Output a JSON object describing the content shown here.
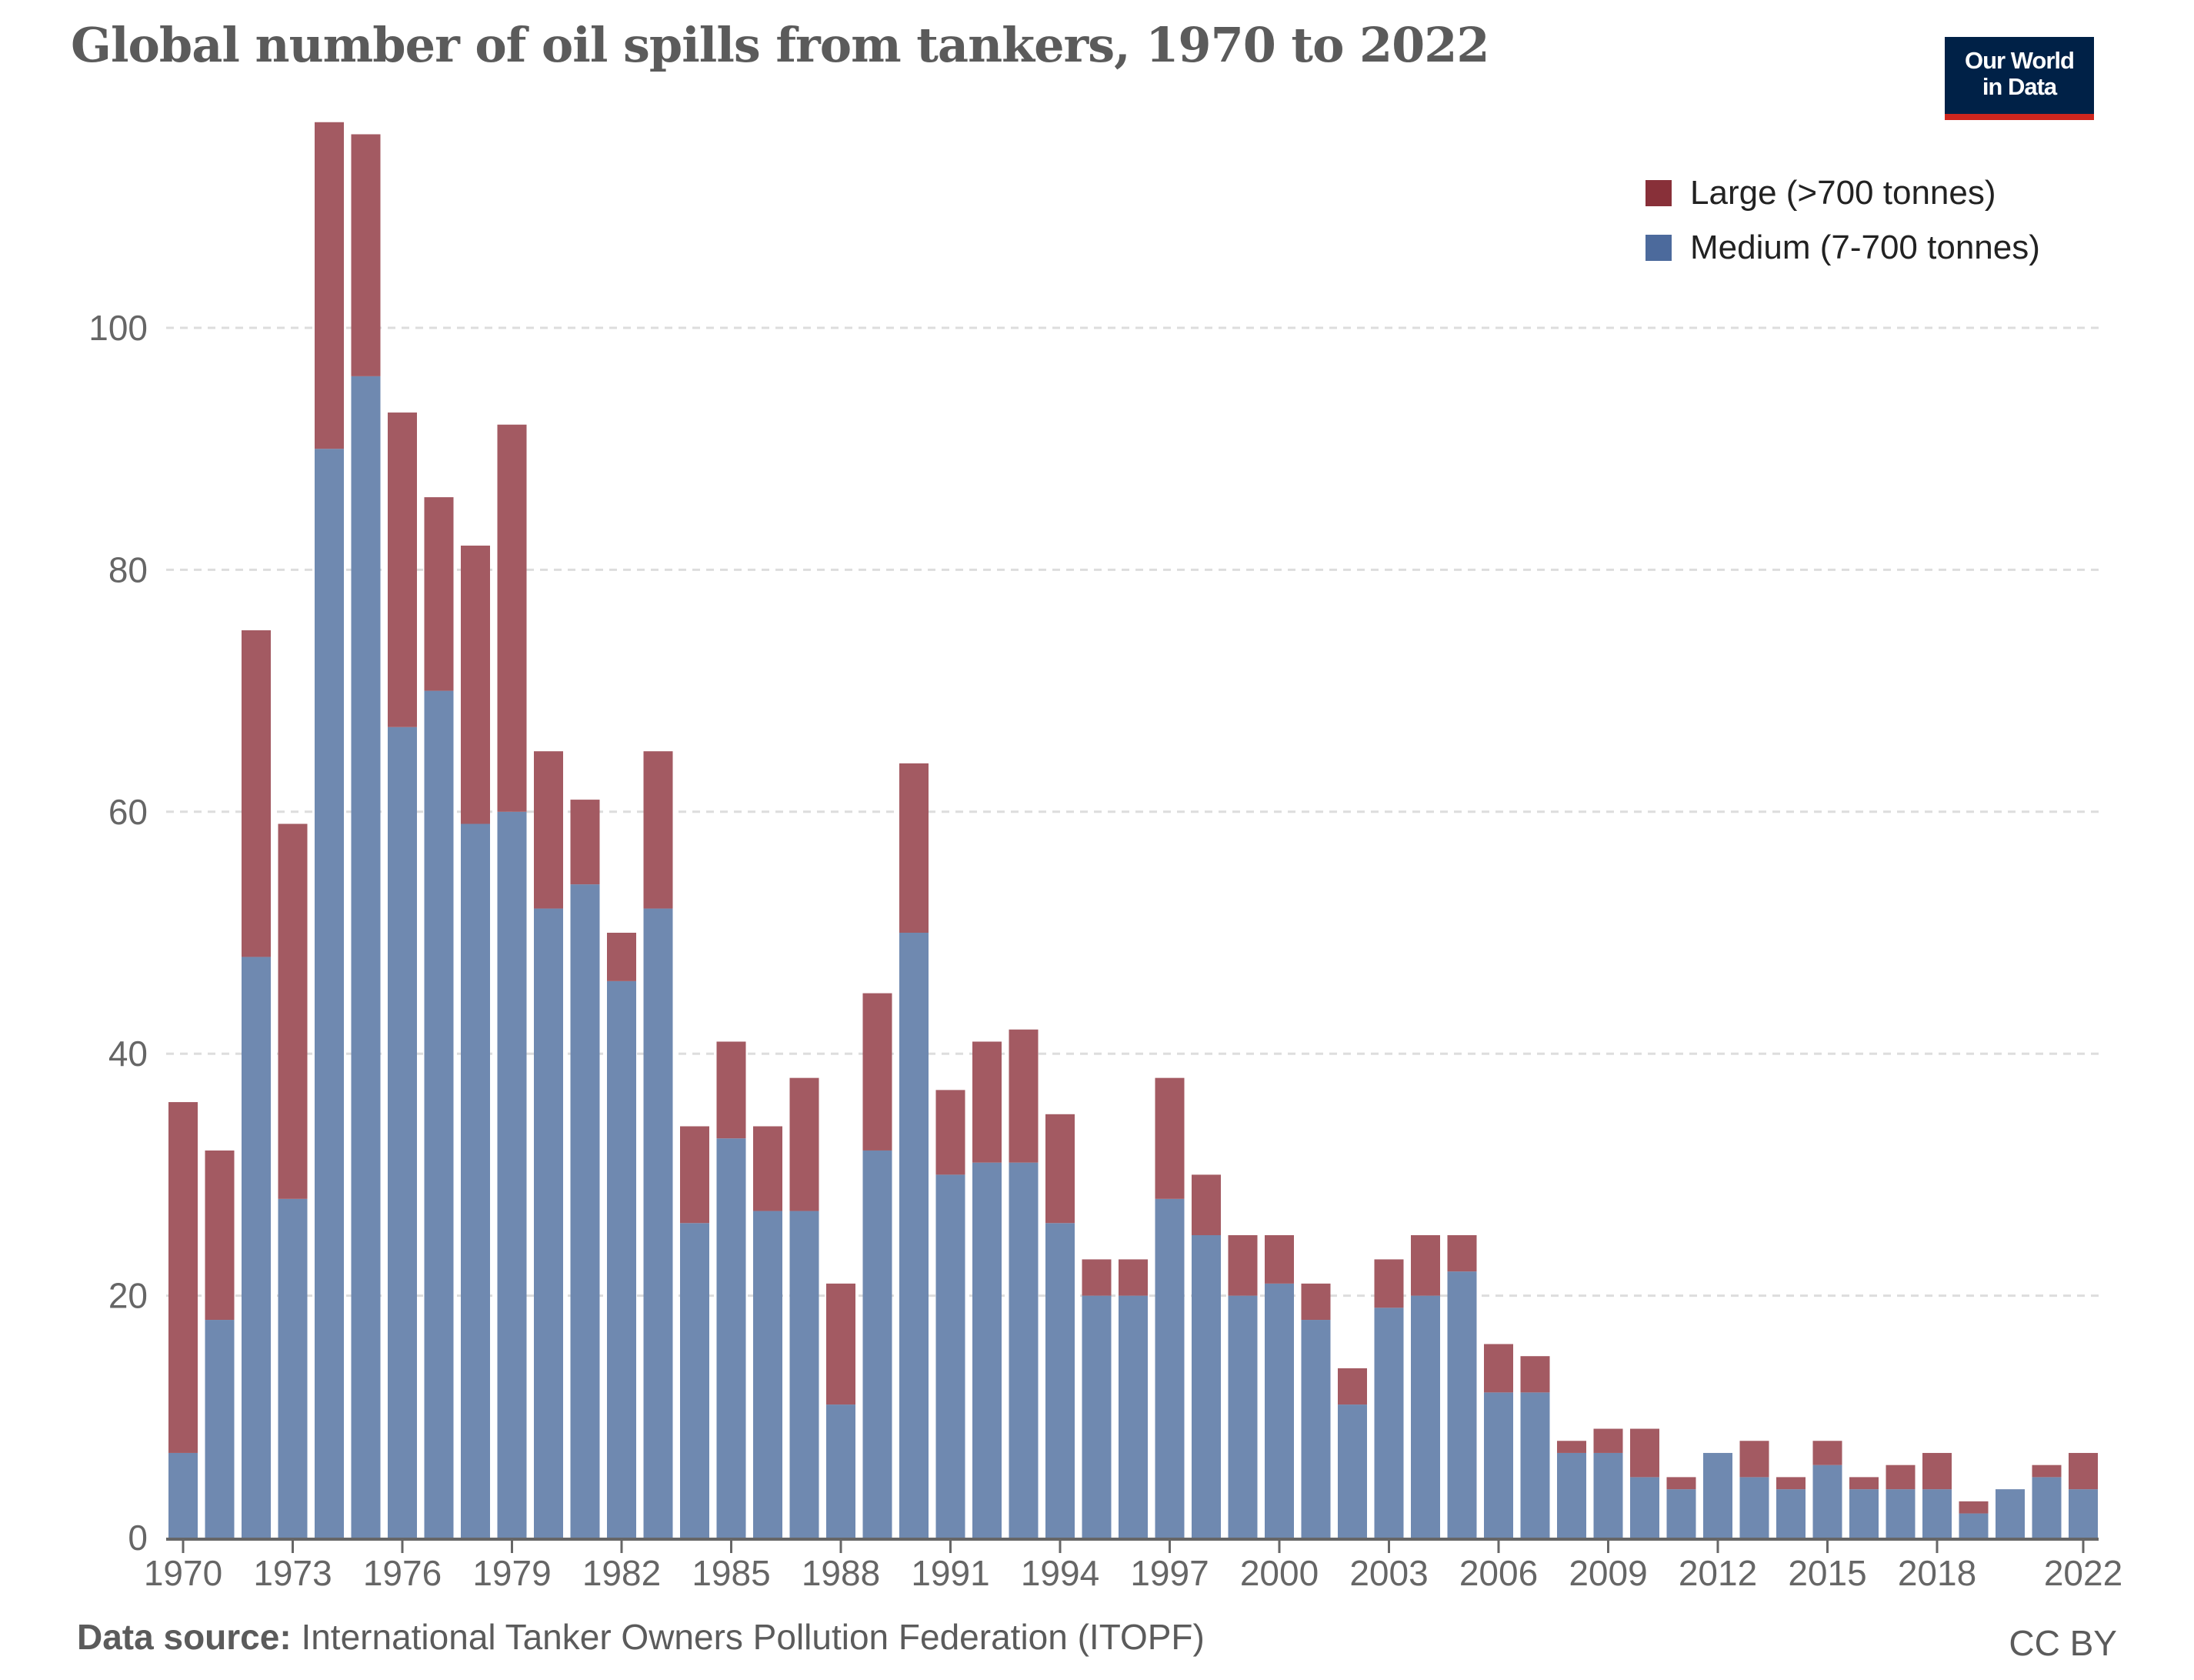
{
  "title": "Global number of oil spills from tankers, 1970 to 2022",
  "logo": {
    "line1": "Our World",
    "line2": "in Data"
  },
  "footer": {
    "source_label": "Data source:",
    "source_text": "International Tanker Owners Pollution Federation (ITOPF)",
    "license": "CC BY"
  },
  "colors": {
    "large": "#a35a62",
    "medium": "#6f89b0",
    "large_legend": "#883039",
    "medium_legend": "#4c6a9c",
    "logo_bg": "#002147",
    "logo_bar": "#ce261e"
  },
  "chart_data": {
    "type": "bar",
    "stacked": true,
    "title": "Global number of oil spills from tankers, 1970 to 2022",
    "xlabel": "",
    "ylabel": "",
    "ylim": [
      0,
      117
    ],
    "yticks": [
      0,
      20,
      40,
      60,
      80,
      100
    ],
    "xtick_labels": [
      "1970",
      "1973",
      "1976",
      "1979",
      "1982",
      "1985",
      "1988",
      "1991",
      "1994",
      "1997",
      "2000",
      "2003",
      "2006",
      "2009",
      "2012",
      "2015",
      "2018",
      "2022"
    ],
    "grid": "horizontal dashed",
    "legend_position": "top-right",
    "categories": [
      1970,
      1971,
      1972,
      1973,
      1974,
      1975,
      1976,
      1977,
      1978,
      1979,
      1980,
      1981,
      1982,
      1983,
      1984,
      1985,
      1986,
      1987,
      1988,
      1989,
      1990,
      1991,
      1992,
      1993,
      1994,
      1995,
      1996,
      1997,
      1998,
      1999,
      2000,
      2001,
      2002,
      2003,
      2004,
      2005,
      2006,
      2007,
      2008,
      2009,
      2010,
      2011,
      2012,
      2013,
      2014,
      2015,
      2016,
      2017,
      2018,
      2019,
      2020,
      2021,
      2022
    ],
    "series": [
      {
        "name": "Medium (7-700 tonnes)",
        "values": [
          7,
          18,
          48,
          28,
          90,
          96,
          67,
          70,
          59,
          60,
          52,
          54,
          46,
          52,
          26,
          33,
          27,
          27,
          11,
          32,
          50,
          30,
          31,
          31,
          26,
          20,
          20,
          28,
          25,
          20,
          21,
          18,
          11,
          19,
          20,
          22,
          12,
          12,
          7,
          7,
          5,
          4,
          7,
          5,
          4,
          6,
          4,
          4,
          4,
          2,
          4,
          5,
          4
        ]
      },
      {
        "name": "Large (>700 tonnes)",
        "values": [
          29,
          14,
          27,
          31,
          27,
          20,
          26,
          16,
          23,
          32,
          13,
          7,
          4,
          13,
          8,
          8,
          7,
          11,
          10,
          13,
          14,
          7,
          10,
          11,
          9,
          3,
          3,
          10,
          5,
          5,
          4,
          3,
          3,
          4,
          5,
          3,
          4,
          3,
          1,
          2,
          4,
          1,
          0,
          3,
          1,
          2,
          1,
          2,
          3,
          1,
          0,
          1,
          3
        ]
      }
    ]
  }
}
